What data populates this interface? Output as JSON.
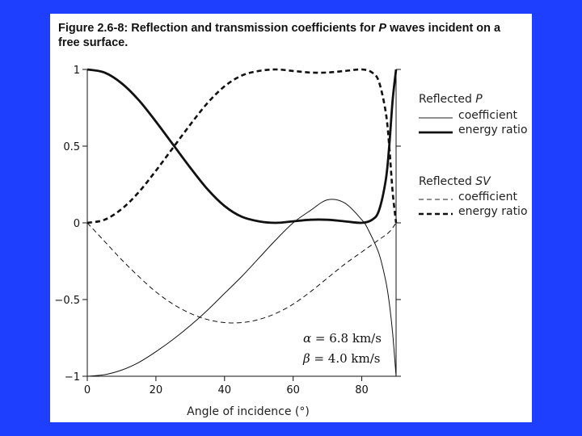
{
  "slide": {
    "background": "#1f3fff",
    "card_background": "#ffffff"
  },
  "figure": {
    "title_prefix": "Figure 2.6-8: Reflection and transmission coefficients for ",
    "title_italic": "P",
    "title_suffix": " waves incident on a free surface."
  },
  "chart_data": {
    "type": "line",
    "title": "Figure 2.6-8: Reflection and transmission coefficients for P waves incident on a free surface.",
    "xlabel": "Angle of incidence (°)",
    "ylabel": "",
    "xlim": [
      0,
      90
    ],
    "ylim": [
      -1,
      1
    ],
    "x_ticks": [
      0,
      20,
      40,
      60,
      80
    ],
    "x_tick_labels": [
      "0",
      "20",
      "40",
      "60",
      "80"
    ],
    "y_ticks": [
      -1,
      -0.5,
      0,
      0.5,
      1
    ],
    "y_tick_labels": [
      "−1",
      "−0.5",
      "0",
      "0.5",
      "1"
    ],
    "grid": false,
    "legend_position": "right",
    "legend": {
      "group1_title": "Reflected ",
      "group1_title_italic": "P",
      "group2_title": "Reflected ",
      "group2_title_italic": "SV",
      "coefficient_label": "coefficient",
      "energy_label": "energy ratio"
    },
    "annotation": {
      "alpha_symbol": "α",
      "alpha_text": " = 6.8 km/s",
      "beta_symbol": "β",
      "beta_text": " = 4.0 km/s"
    },
    "series": [
      {
        "name": "Reflected P coefficient",
        "style": "thin-solid",
        "x": [
          0,
          5,
          10,
          15,
          20,
          25,
          30,
          35,
          40,
          45,
          50,
          55,
          60,
          65,
          70,
          75,
          80,
          82,
          85,
          87,
          88,
          89,
          90
        ],
        "y": [
          -1.0,
          -0.99,
          -0.96,
          -0.91,
          -0.84,
          -0.76,
          -0.67,
          -0.57,
          -0.46,
          -0.35,
          -0.23,
          -0.11,
          0.0,
          0.08,
          0.15,
          0.13,
          0.02,
          -0.05,
          -0.2,
          -0.38,
          -0.52,
          -0.72,
          -1.0
        ]
      },
      {
        "name": "Reflected P energy ratio",
        "style": "thick-solid",
        "x": [
          0,
          5,
          10,
          15,
          20,
          25,
          30,
          35,
          40,
          45,
          50,
          55,
          60,
          65,
          70,
          75,
          80,
          83,
          85,
          87,
          88,
          89,
          90
        ],
        "y": [
          1.0,
          0.98,
          0.91,
          0.8,
          0.66,
          0.51,
          0.36,
          0.22,
          0.11,
          0.04,
          0.01,
          0.0,
          0.01,
          0.02,
          0.02,
          0.01,
          0.0,
          0.02,
          0.08,
          0.28,
          0.5,
          0.8,
          1.0
        ]
      },
      {
        "name": "Reflected SV coefficient",
        "style": "thin-dashed",
        "x": [
          0,
          5,
          10,
          15,
          20,
          25,
          30,
          35,
          40,
          45,
          50,
          55,
          60,
          65,
          70,
          75,
          80,
          85,
          88,
          90
        ],
        "y": [
          0.0,
          -0.12,
          -0.24,
          -0.35,
          -0.45,
          -0.53,
          -0.59,
          -0.63,
          -0.65,
          -0.65,
          -0.63,
          -0.59,
          -0.53,
          -0.45,
          -0.36,
          -0.27,
          -0.19,
          -0.11,
          -0.06,
          0.0
        ]
      },
      {
        "name": "Reflected SV energy ratio",
        "style": "thick-dashed",
        "x": [
          0,
          5,
          10,
          15,
          20,
          25,
          30,
          35,
          40,
          45,
          50,
          55,
          60,
          65,
          70,
          75,
          80,
          83,
          85,
          87,
          88,
          89,
          90
        ],
        "y": [
          0.0,
          0.02,
          0.09,
          0.2,
          0.34,
          0.49,
          0.64,
          0.78,
          0.89,
          0.96,
          0.99,
          1.0,
          0.99,
          0.98,
          0.98,
          0.99,
          1.0,
          0.98,
          0.92,
          0.72,
          0.5,
          0.2,
          0.0
        ]
      }
    ]
  }
}
